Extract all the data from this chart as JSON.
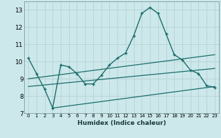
{
  "xlabel": "Humidex (Indice chaleur)",
  "bg_color": "#cce8ea",
  "grid_color": "#b8d4d6",
  "line_color": "#1a6b6b",
  "main_x": [
    0,
    1,
    2,
    3,
    4,
    5,
    6,
    7,
    8,
    9,
    10,
    11,
    12,
    13,
    14,
    15,
    16,
    17,
    18,
    19,
    20,
    21,
    22,
    23
  ],
  "main_y": [
    10.2,
    9.3,
    8.4,
    7.3,
    9.8,
    9.7,
    9.3,
    8.7,
    8.7,
    9.2,
    9.8,
    10.2,
    10.5,
    11.5,
    12.8,
    13.15,
    12.8,
    11.6,
    10.4,
    10.1,
    9.5,
    9.3,
    8.6,
    8.5
  ],
  "trend1_x": [
    0,
    23
  ],
  "trend1_y": [
    9.0,
    10.4
  ],
  "trend2_x": [
    0,
    23
  ],
  "trend2_y": [
    8.55,
    9.6
  ],
  "trend3_x": [
    3,
    23
  ],
  "trend3_y": [
    7.3,
    8.55
  ],
  "ylim": [
    7,
    13.5
  ],
  "xlim": [
    -0.5,
    23.5
  ],
  "xticks": [
    0,
    1,
    2,
    3,
    4,
    5,
    6,
    7,
    8,
    9,
    10,
    11,
    12,
    13,
    14,
    15,
    16,
    17,
    18,
    19,
    20,
    21,
    22,
    23
  ],
  "yticks": [
    7,
    8,
    9,
    10,
    11,
    12,
    13
  ]
}
